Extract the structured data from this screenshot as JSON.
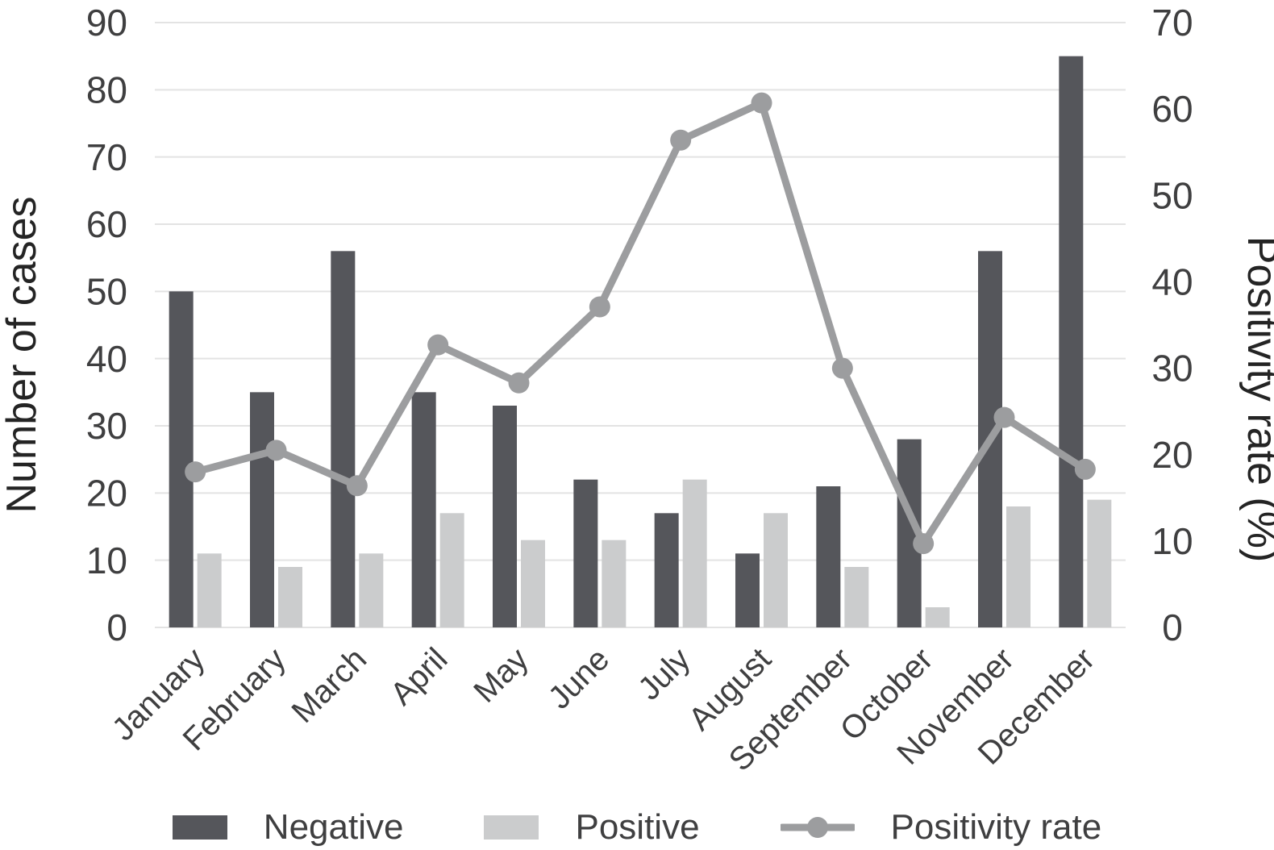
{
  "chart_data": {
    "type": "combo-bar-line",
    "title": "",
    "categories": [
      "January",
      "February",
      "March",
      "April",
      "May",
      "June",
      "July",
      "August",
      "September",
      "October",
      "November",
      "December"
    ],
    "series": [
      {
        "name": "Negative",
        "type": "bar",
        "axis": "left",
        "color": "#55565b",
        "values": [
          50,
          35,
          56,
          35,
          33,
          22,
          17,
          11,
          21,
          28,
          56,
          85
        ]
      },
      {
        "name": "Positive",
        "type": "bar",
        "axis": "left",
        "color": "#cbcccd",
        "values": [
          11,
          9,
          11,
          17,
          13,
          13,
          22,
          17,
          9,
          3,
          18,
          19
        ]
      },
      {
        "name": "Positivity rate",
        "type": "line",
        "axis": "right",
        "color": "#9c9d9f",
        "values": [
          18.0,
          20.5,
          16.4,
          32.7,
          28.3,
          37.1,
          56.4,
          60.7,
          30.0,
          9.7,
          24.3,
          18.3
        ]
      }
    ],
    "left_axis": {
      "label": "Number of cases",
      "min": 0,
      "max": 90,
      "ticks": [
        0,
        10,
        20,
        30,
        40,
        50,
        60,
        70,
        80,
        90
      ]
    },
    "right_axis": {
      "label": "Positivity rate (%)",
      "min": 0,
      "max": 70,
      "ticks": [
        0,
        10,
        20,
        30,
        40,
        50,
        60,
        70
      ]
    },
    "legend": {
      "position": "bottom",
      "items": [
        "Negative",
        "Positive",
        "Positivity rate"
      ]
    },
    "grid": "horizontal",
    "gridline_color": "#e3e3e3",
    "tick_text_color": "#3f3f40",
    "axis_title_color": "#242424",
    "background_color": "#ffffff"
  }
}
